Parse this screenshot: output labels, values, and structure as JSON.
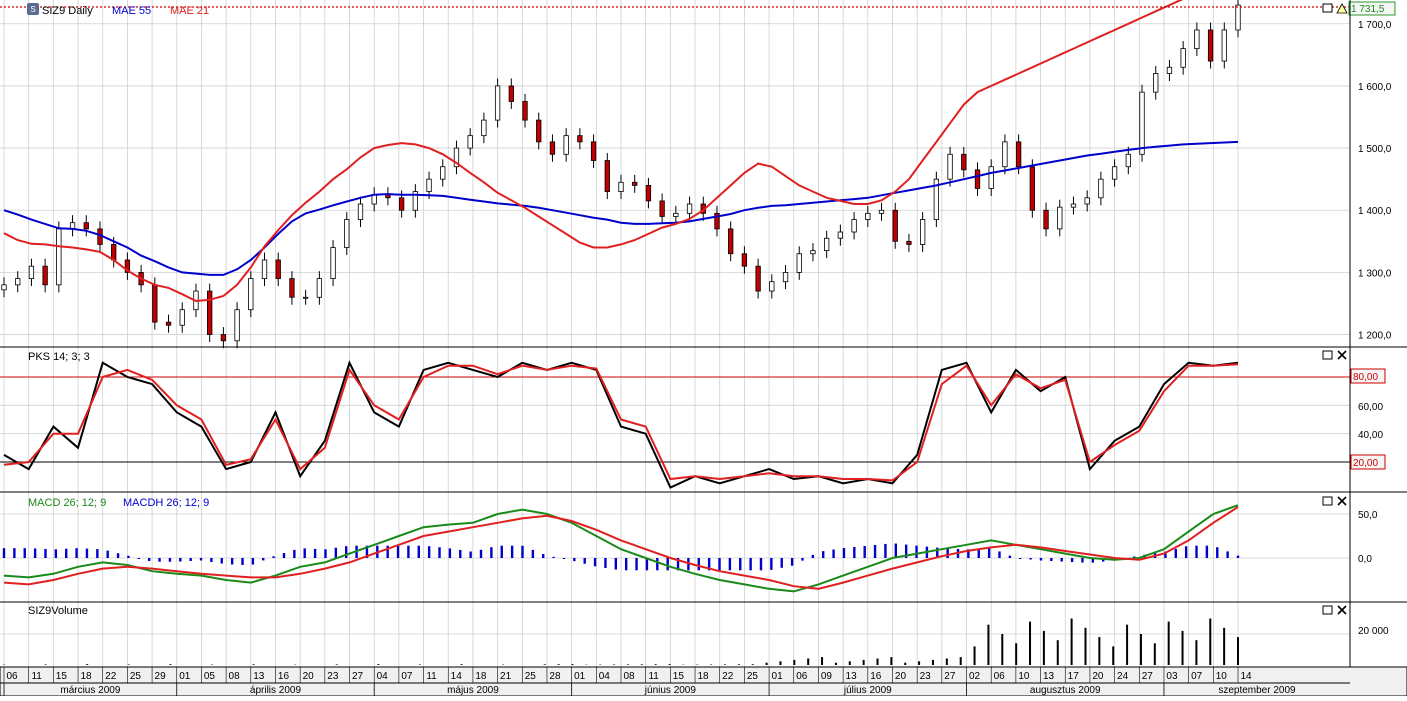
{
  "colors": {
    "price_line": "#cc0000",
    "ma55": "#0000cc",
    "ma21": "#e02020",
    "stoch_k": "#000000",
    "stoch_d": "#e02020",
    "macd": "#1a8a1a",
    "signal": "#e02020",
    "hist": "#0000cc",
    "volume": "#000000",
    "grid": "#d0d0d0",
    "candle_up": "#ffffff",
    "candle_down": "#c00000"
  },
  "price_panel": {
    "legend": {
      "symbol_icon": "S",
      "title": "SIZ9 Daily",
      "ma1": "MAE 55",
      "ma2": "MAE 21"
    },
    "last_price_label": "1 731,5",
    "ticks": [
      "1 700,0",
      "1 600,0",
      "1 500,0",
      "1 400,0",
      "1 300,0",
      "1 200,0"
    ]
  },
  "stoch_panel": {
    "legend": "PKS 14; 3; 3",
    "ticks": [
      "60,00",
      "40,00"
    ],
    "ob_label": "80,00",
    "os_label": "20,00"
  },
  "macd_panel": {
    "legend1": "MACD 26; 12; 9",
    "legend2": "MACDH 26; 12; 9",
    "ticks": [
      "50,0",
      "0,0"
    ]
  },
  "volume_panel": {
    "legend": "SIZ9Volume",
    "ticks": [
      "20 000"
    ]
  },
  "x_axis": {
    "days": [
      "06",
      "11",
      "15",
      "18",
      "22",
      "25",
      "29",
      "01",
      "05",
      "08",
      "13",
      "16",
      "20",
      "23",
      "27",
      "04",
      "07",
      "11",
      "14",
      "18",
      "21",
      "25",
      "28",
      "01",
      "04",
      "08",
      "11",
      "15",
      "18",
      "22",
      "25",
      "01",
      "06",
      "09",
      "13",
      "16",
      "20",
      "23",
      "27",
      "02",
      "06",
      "10",
      "13",
      "17",
      "20",
      "24",
      "27",
      "03",
      "07",
      "10",
      "14"
    ],
    "months": [
      "március 2009",
      "április 2009",
      "május 2009",
      "június 2009",
      "július 2009",
      "augusztus 2009",
      "szeptember 2009"
    ]
  },
  "chart_data": {
    "type": "candlestick",
    "x_unit": "trading day index (0 = first visible session, 6 March 2009)",
    "sample_step": 2,
    "close": [
      1280,
      1290,
      1310,
      1280,
      1370,
      1380,
      1370,
      1345,
      1320,
      1300,
      1280,
      1220,
      1215,
      1240,
      1270,
      1200,
      1190,
      1240,
      1290,
      1320,
      1290,
      1260,
      1260,
      1290,
      1340,
      1385,
      1410,
      1425,
      1420,
      1400,
      1430,
      1450,
      1470,
      1500,
      1520,
      1545,
      1600,
      1575,
      1545,
      1510,
      1490,
      1520,
      1510,
      1480,
      1430,
      1445,
      1440,
      1415,
      1390,
      1395,
      1410,
      1395,
      1370,
      1330,
      1310,
      1270,
      1285,
      1300,
      1330,
      1335,
      1355,
      1365,
      1385,
      1395,
      1400,
      1350,
      1345,
      1385,
      1450,
      1490,
      1465,
      1435,
      1470,
      1510,
      1470,
      1400,
      1370,
      1405,
      1410,
      1420,
      1450,
      1470,
      1490,
      1590,
      1620,
      1630,
      1660,
      1690,
      1640,
      1690,
      1730
    ],
    "ma55": [
      1400,
      1393,
      1385,
      1378,
      1371,
      1370,
      1367,
      1360,
      1350,
      1340,
      1327,
      1318,
      1308,
      1300,
      1298,
      1296,
      1296,
      1305,
      1320,
      1340,
      1362,
      1382,
      1395,
      1401,
      1408,
      1414,
      1420,
      1425,
      1426,
      1425,
      1425,
      1424,
      1423,
      1420,
      1417,
      1414,
      1411,
      1409,
      1407,
      1404,
      1400,
      1396,
      1392,
      1388,
      1385,
      1380,
      1378,
      1378,
      1379,
      1380,
      1382,
      1386,
      1390,
      1394,
      1400,
      1404,
      1407,
      1408,
      1410,
      1412,
      1414,
      1416,
      1418,
      1420,
      1424,
      1428,
      1432,
      1436,
      1440,
      1445,
      1450,
      1455,
      1460,
      1464,
      1468,
      1472,
      1476,
      1480,
      1484,
      1488,
      1491,
      1494,
      1497,
      1500,
      1502,
      1504,
      1506,
      1507,
      1508,
      1509,
      1510
    ],
    "ma21": [
      1363,
      1352,
      1346,
      1345,
      1342,
      1340,
      1337,
      1333,
      1320,
      1303,
      1290,
      1280,
      1275,
      1265,
      1254,
      1256,
      1262,
      1280,
      1308,
      1342,
      1368,
      1392,
      1412,
      1430,
      1450,
      1466,
      1485,
      1500,
      1505,
      1508,
      1506,
      1500,
      1490,
      1476,
      1460,
      1445,
      1428,
      1416,
      1404,
      1390,
      1376,
      1362,
      1348,
      1340,
      1340,
      1345,
      1352,
      1362,
      1372,
      1378,
      1386,
      1400,
      1420,
      1440,
      1460,
      1475,
      1470,
      1455,
      1440,
      1430,
      1420,
      1415,
      1410,
      1410,
      1416,
      1430,
      1450,
      1480,
      1510,
      1540,
      1570,
      1590,
      1600,
      1610,
      1620,
      1630,
      1640,
      1650,
      1660,
      1670,
      1680,
      1690,
      1700,
      1710,
      1720,
      1730,
      1740,
      1750,
      1760,
      1770,
      1780
    ],
    "stoch_k": [
      25,
      15,
      45,
      30,
      90,
      80,
      75,
      55,
      45,
      15,
      20,
      55,
      10,
      35,
      90,
      55,
      45,
      85,
      90,
      85,
      80,
      90,
      85,
      90,
      85,
      45,
      40,
      2,
      10,
      5,
      10,
      15,
      8,
      10,
      5,
      8,
      5,
      25,
      85,
      90,
      55,
      85,
      70,
      80,
      15,
      35,
      45,
      75,
      90,
      88,
      90
    ],
    "stoch_d": [
      18,
      20,
      40,
      40,
      80,
      85,
      78,
      60,
      50,
      18,
      22,
      50,
      15,
      30,
      85,
      60,
      50,
      80,
      88,
      88,
      82,
      88,
      85,
      88,
      86,
      50,
      45,
      8,
      10,
      8,
      10,
      12,
      10,
      10,
      8,
      8,
      7,
      20,
      75,
      88,
      60,
      82,
      72,
      78,
      20,
      32,
      42,
      70,
      88,
      88,
      89
    ],
    "macd": [
      -20,
      -22,
      -18,
      -10,
      -5,
      -8,
      -15,
      -18,
      -20,
      -25,
      -28,
      -20,
      -10,
      -5,
      5,
      15,
      25,
      35,
      38,
      40,
      50,
      55,
      50,
      40,
      25,
      10,
      0,
      -10,
      -18,
      -25,
      -30,
      -35,
      -38,
      -30,
      -20,
      -10,
      0,
      5,
      10,
      15,
      20,
      15,
      10,
      5,
      0,
      -2,
      0,
      10,
      30,
      50,
      60
    ],
    "signal": [
      -28,
      -30,
      -25,
      -18,
      -12,
      -10,
      -12,
      -15,
      -18,
      -20,
      -22,
      -22,
      -18,
      -12,
      -5,
      5,
      15,
      25,
      30,
      35,
      40,
      45,
      48,
      42,
      32,
      20,
      10,
      0,
      -8,
      -15,
      -20,
      -25,
      -32,
      -35,
      -28,
      -20,
      -12,
      -5,
      2,
      8,
      12,
      15,
      12,
      8,
      4,
      0,
      -2,
      5,
      20,
      40,
      58
    ]
  }
}
